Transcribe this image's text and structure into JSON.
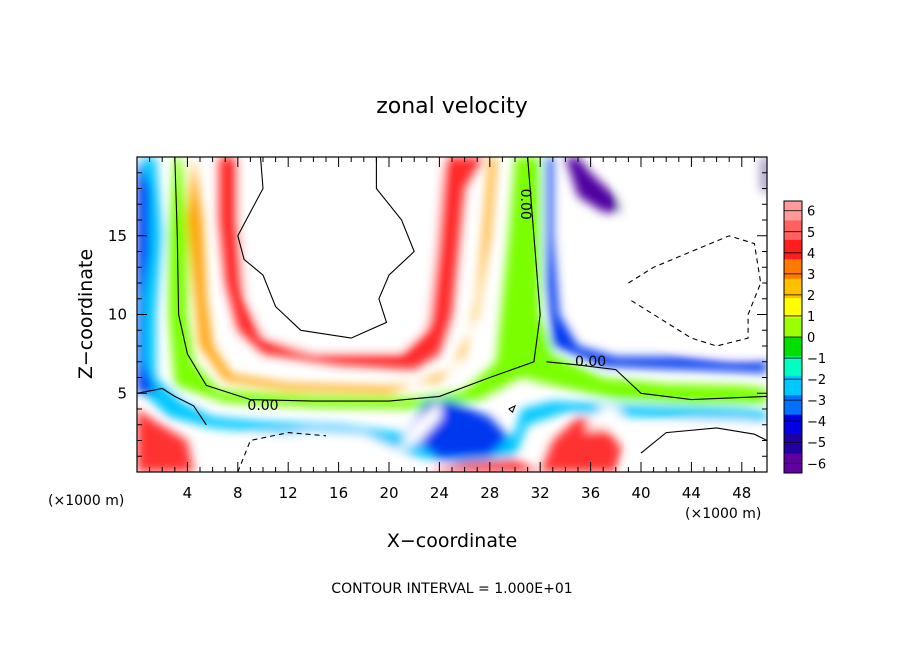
{
  "chart_data": {
    "type": "heatmap",
    "title": "zonal velocity",
    "xlabel": "X−coordinate",
    "ylabel": "Z−coordinate",
    "x_unit_left": "(×1000 m)",
    "x_unit_right": "(×1000 m)",
    "xlim": [
      0,
      50
    ],
    "ylim": [
      0,
      20
    ],
    "x_ticks": [
      4,
      8,
      12,
      16,
      20,
      24,
      28,
      32,
      36,
      40,
      44,
      48
    ],
    "y_ticks": [
      5,
      10,
      15
    ],
    "contour_interval_text": "CONTOUR INTERVAL = 1.000E+01",
    "contour_labels": [
      {
        "text": "0.00",
        "x": 30.8,
        "z": 17.0,
        "rotate": 90
      },
      {
        "text": "0.00",
        "x": 10.0,
        "z": 4.2,
        "rotate": 0
      },
      {
        "text": "0.00",
        "x": 36.0,
        "z": 7.0,
        "rotate": 0
      }
    ],
    "colorbar": {
      "levels": [
        "6",
        "5",
        "4",
        "3",
        "2",
        "1",
        "0",
        "−1",
        "−2",
        "−3",
        "−4",
        "−5",
        "−6"
      ],
      "colors": [
        "#ff9a9a",
        "#ff6060",
        "#ff1e1e",
        "#ff7a00",
        "#ffc000",
        "#ffff00",
        "#9aff00",
        "#00e000",
        "#00ffc0",
        "#00c8ff",
        "#0070ff",
        "#0000e0",
        "#2000a0",
        "#6000a0"
      ]
    },
    "fields": [
      {
        "value": 5.0,
        "color": "#ff2a2a",
        "points": [
          [
            5,
            20
          ],
          [
            6.5,
            20
          ],
          [
            6.5,
            16
          ],
          [
            7,
            12
          ],
          [
            8,
            9
          ],
          [
            10,
            7.5
          ],
          [
            16,
            6.8
          ],
          [
            22,
            6.5
          ],
          [
            24,
            7.5
          ],
          [
            25,
            10
          ],
          [
            25.5,
            14
          ],
          [
            26,
            18
          ],
          [
            27.5,
            20
          ],
          [
            24.5,
            20
          ],
          [
            24,
            17
          ],
          [
            23.5,
            13
          ],
          [
            23,
            9
          ],
          [
            21,
            7.5
          ],
          [
            14,
            7.5
          ],
          [
            10,
            8.5
          ],
          [
            8.5,
            11
          ],
          [
            8,
            16
          ],
          [
            8,
            20
          ]
        ]
      },
      {
        "value": 2.5,
        "color": "#ffa000",
        "points": [
          [
            4.5,
            20
          ],
          [
            5.2,
            16
          ],
          [
            5.5,
            11
          ],
          [
            6,
            8
          ],
          [
            7.5,
            6.2
          ],
          [
            12,
            5.6
          ],
          [
            20,
            5.4
          ],
          [
            24,
            5.8
          ],
          [
            26,
            7.5
          ],
          [
            27,
            11
          ],
          [
            27.5,
            15
          ],
          [
            28,
            20
          ],
          [
            28.5,
            20
          ],
          [
            28,
            15
          ],
          [
            27,
            10
          ],
          [
            25,
            6.5
          ],
          [
            20,
            5
          ],
          [
            12,
            5.2
          ],
          [
            7,
            5.8
          ],
          [
            5,
            8
          ],
          [
            4.5,
            12
          ],
          [
            4,
            16
          ]
        ]
      },
      {
        "value": 0.5,
        "color": "#7aff00",
        "points": [
          [
            3.5,
            20
          ],
          [
            4,
            15
          ],
          [
            4,
            10
          ],
          [
            4.5,
            7
          ],
          [
            6.5,
            5.2
          ],
          [
            14,
            4.8
          ],
          [
            22,
            4.7
          ],
          [
            26,
            5.2
          ],
          [
            28.5,
            7
          ],
          [
            29,
            11
          ],
          [
            29.5,
            15
          ],
          [
            30,
            20
          ],
          [
            32,
            20
          ],
          [
            32,
            15
          ],
          [
            32,
            10
          ],
          [
            33,
            7.5
          ],
          [
            37,
            6
          ],
          [
            42,
            5.6
          ],
          [
            48,
            5.5
          ],
          [
            50,
            5.3
          ],
          [
            50,
            4.3
          ],
          [
            44,
            4.3
          ],
          [
            38,
            4.6
          ],
          [
            33,
            5.5
          ],
          [
            30.5,
            6
          ],
          [
            27,
            4.5
          ],
          [
            22,
            4
          ],
          [
            14,
            4.1
          ],
          [
            7,
            4.4
          ],
          [
            3,
            5.5
          ],
          [
            2.5,
            10
          ],
          [
            2.5,
            15
          ],
          [
            3,
            20
          ]
        ]
      },
      {
        "value": -2.5,
        "color": "#00c8ff",
        "points": [
          [
            1.5,
            20
          ],
          [
            2,
            15
          ],
          [
            1.5,
            10
          ],
          [
            1.5,
            6
          ],
          [
            3.5,
            4.5
          ],
          [
            6,
            3.5
          ],
          [
            10,
            3.2
          ],
          [
            16,
            3
          ],
          [
            21,
            2.5
          ],
          [
            24,
            2
          ],
          [
            28,
            1.5
          ],
          [
            30,
            2.5
          ],
          [
            30.5,
            4
          ],
          [
            33,
            4.5
          ],
          [
            40,
            4.2
          ],
          [
            48,
            4
          ],
          [
            50,
            3.8
          ],
          [
            50,
            3.2
          ],
          [
            40,
            3.5
          ],
          [
            34,
            3.8
          ],
          [
            31,
            3
          ],
          [
            30,
            1
          ],
          [
            26,
            0.5
          ],
          [
            22,
            1
          ],
          [
            18,
            2
          ],
          [
            12,
            2.4
          ],
          [
            6,
            2.8
          ],
          [
            2.5,
            3.5
          ],
          [
            0.5,
            5
          ],
          [
            0.5,
            10
          ],
          [
            0.5,
            15
          ],
          [
            0.5,
            20
          ]
        ]
      },
      {
        "value": -4.5,
        "color": "#0038f0",
        "points": [
          [
            0,
            20
          ],
          [
            1,
            18
          ],
          [
            1,
            14
          ],
          [
            0.5,
            11
          ],
          [
            0.5,
            7
          ],
          [
            1.5,
            5
          ],
          [
            0,
            5
          ]
        ]
      },
      {
        "value": -4.5,
        "color": "#0038f0",
        "points": [
          [
            33,
            20
          ],
          [
            33,
            15
          ],
          [
            33.5,
            10
          ],
          [
            35,
            8
          ],
          [
            38,
            7.3
          ],
          [
            43,
            7.3
          ],
          [
            47,
            7
          ],
          [
            50,
            7
          ],
          [
            50,
            6.3
          ],
          [
            44,
            6.5
          ],
          [
            37,
            6.7
          ],
          [
            33,
            8
          ],
          [
            32.5,
            12
          ],
          [
            32.5,
            20
          ]
        ]
      },
      {
        "value": -4.5,
        "color": "#0038f0",
        "points": [
          [
            21.5,
            2.5
          ],
          [
            23,
            4.5
          ],
          [
            25,
            4.5
          ],
          [
            28,
            3.5
          ],
          [
            29.5,
            2.2
          ],
          [
            28,
            1
          ],
          [
            24,
            0.8
          ]
        ]
      },
      {
        "value": -5.8,
        "color": "#5000a0",
        "points": [
          [
            35,
            20
          ],
          [
            36,
            19
          ],
          [
            38,
            17.5
          ],
          [
            38.5,
            16.5
          ],
          [
            37,
            16.5
          ],
          [
            35,
            17.5
          ],
          [
            34,
            20
          ]
        ]
      },
      {
        "value": -5.8,
        "color": "#5000a0",
        "points": [
          [
            49.5,
            20
          ],
          [
            50,
            20
          ],
          [
            50,
            17.5
          ],
          [
            49.5,
            18
          ]
        ]
      },
      {
        "value": 4.5,
        "color": "#ff3030",
        "points": [
          [
            32,
            0
          ],
          [
            33,
            2
          ],
          [
            35,
            3.5
          ],
          [
            37,
            3
          ],
          [
            38.5,
            1.5
          ],
          [
            38,
            0
          ]
        ]
      },
      {
        "value": 4.5,
        "color": "#ff3030",
        "points": [
          [
            0,
            4
          ],
          [
            1.5,
            3.2
          ],
          [
            4,
            2
          ],
          [
            4.5,
            0
          ],
          [
            0,
            0
          ]
        ]
      },
      {
        "value": 4.5,
        "color": "#ff3030",
        "points": [
          [
            23,
            0
          ],
          [
            26,
            0.6
          ],
          [
            30,
            0.8
          ],
          [
            32,
            0
          ],
          [
            30,
            0
          ]
        ]
      },
      {
        "value": 3.0,
        "color": "#ff7a00",
        "points": [
          [
            48,
            0
          ],
          [
            49,
            2
          ],
          [
            50,
            2.5
          ],
          [
            50,
            0
          ]
        ]
      },
      {
        "value": 6.0,
        "color": "#ffffff",
        "points": [
          [
            8.2,
            20
          ],
          [
            8.2,
            16
          ],
          [
            8.5,
            12
          ],
          [
            10,
            8.8
          ],
          [
            13,
            7.8
          ],
          [
            21,
            7.8
          ],
          [
            23.2,
            9.5
          ],
          [
            23.8,
            14
          ],
          [
            24.2,
            18
          ],
          [
            24.3,
            20
          ]
        ]
      },
      {
        "value": -6.0,
        "color": "#ffffff",
        "points": [
          [
            38.5,
            20
          ],
          [
            38.5,
            17
          ],
          [
            38.5,
            13
          ],
          [
            40,
            10
          ],
          [
            43,
            8
          ],
          [
            47,
            7.6
          ],
          [
            49,
            7.6
          ],
          [
            49.5,
            9
          ],
          [
            49.5,
            17
          ],
          [
            49.5,
            20
          ]
        ]
      },
      {
        "value": 6.0,
        "color": "#ffffff",
        "points": [
          [
            7,
            0
          ],
          [
            9,
            2.2
          ],
          [
            14,
            2.6
          ],
          [
            18,
            2.4
          ],
          [
            21,
            1.3
          ],
          [
            22,
            0
          ]
        ]
      },
      {
        "value": 6.0,
        "color": "#ffffff",
        "points": [
          [
            38.5,
            0
          ],
          [
            40,
            2.5
          ],
          [
            44,
            3.2
          ],
          [
            48,
            3.3
          ],
          [
            50,
            2.8
          ],
          [
            50,
            0
          ]
        ]
      },
      {
        "value": 6.0,
        "color": "#ffffff",
        "points": [
          [
            20.5,
            1.2
          ],
          [
            22.3,
            3.3
          ],
          [
            24,
            4.5
          ],
          [
            24.2,
            3.5
          ],
          [
            22.5,
            2
          ]
        ]
      },
      {
        "value": 6.0,
        "color": "#ffffff",
        "points": [
          [
            35.5,
            2.6
          ],
          [
            37,
            4.2
          ],
          [
            38.5,
            4
          ],
          [
            37.5,
            2.8
          ]
        ]
      }
    ],
    "contours": [
      {
        "value": 0.0,
        "style": "solid",
        "points": [
          [
            3,
            20
          ],
          [
            3.2,
            15
          ],
          [
            3.3,
            10
          ],
          [
            4,
            7.5
          ],
          [
            5.5,
            5.5
          ],
          [
            9,
            4.6
          ],
          [
            14,
            4.5
          ],
          [
            20,
            4.5
          ],
          [
            24,
            4.8
          ],
          [
            28,
            6
          ],
          [
            31.5,
            7
          ],
          [
            32,
            10
          ],
          [
            31.5,
            15
          ],
          [
            31,
            20
          ]
        ]
      },
      {
        "value": 0.0,
        "style": "solid",
        "points": [
          [
            0,
            5
          ],
          [
            2,
            5.3
          ],
          [
            3,
            4.8
          ],
          [
            4.5,
            4.2
          ],
          [
            5.5,
            3
          ]
        ]
      },
      {
        "value": 0.0,
        "style": "solid",
        "points": [
          [
            32.5,
            7
          ],
          [
            35,
            6.8
          ],
          [
            38,
            6.5
          ],
          [
            40,
            5
          ],
          [
            44,
            4.6
          ],
          [
            50,
            4.8
          ]
        ]
      },
      {
        "value": 0.0,
        "style": "solid",
        "points": [
          [
            19,
            20
          ],
          [
            19,
            18
          ],
          [
            21,
            16
          ],
          [
            22,
            14
          ],
          [
            20,
            12.5
          ],
          [
            19.2,
            11
          ],
          [
            19.8,
            9.5
          ],
          [
            17,
            8.5
          ],
          [
            13,
            9
          ],
          [
            11,
            10.5
          ],
          [
            10,
            12.5
          ],
          [
            8.5,
            13.5
          ],
          [
            8,
            15
          ],
          [
            9,
            16.5
          ],
          [
            10,
            18
          ],
          [
            9.8,
            20
          ]
        ]
      },
      {
        "value": 0.0,
        "style": "dashed",
        "points": [
          [
            39,
            12
          ],
          [
            41,
            13
          ],
          [
            44,
            14
          ],
          [
            47,
            15
          ],
          [
            49,
            14.5
          ],
          [
            49.5,
            12
          ],
          [
            48.5,
            10
          ],
          [
            48.5,
            8.5
          ],
          [
            46,
            8
          ],
          [
            44,
            8.5
          ],
          [
            41,
            10
          ],
          [
            39,
            11
          ]
        ]
      },
      {
        "value": 0.0,
        "style": "dashed",
        "points": [
          [
            8,
            0
          ],
          [
            9,
            2
          ],
          [
            12,
            2.5
          ],
          [
            15,
            2.3
          ]
        ]
      },
      {
        "value": 0.0,
        "style": "solid",
        "points": [
          [
            40,
            1.2
          ],
          [
            42,
            2.5
          ],
          [
            46,
            2.8
          ],
          [
            49,
            2.4
          ],
          [
            50,
            2
          ]
        ]
      },
      {
        "value": 0.0,
        "style": "solid",
        "points": [
          [
            29.5,
            4
          ],
          [
            30,
            4.2
          ],
          [
            29.8,
            3.8
          ],
          [
            29.5,
            4
          ]
        ]
      }
    ]
  }
}
